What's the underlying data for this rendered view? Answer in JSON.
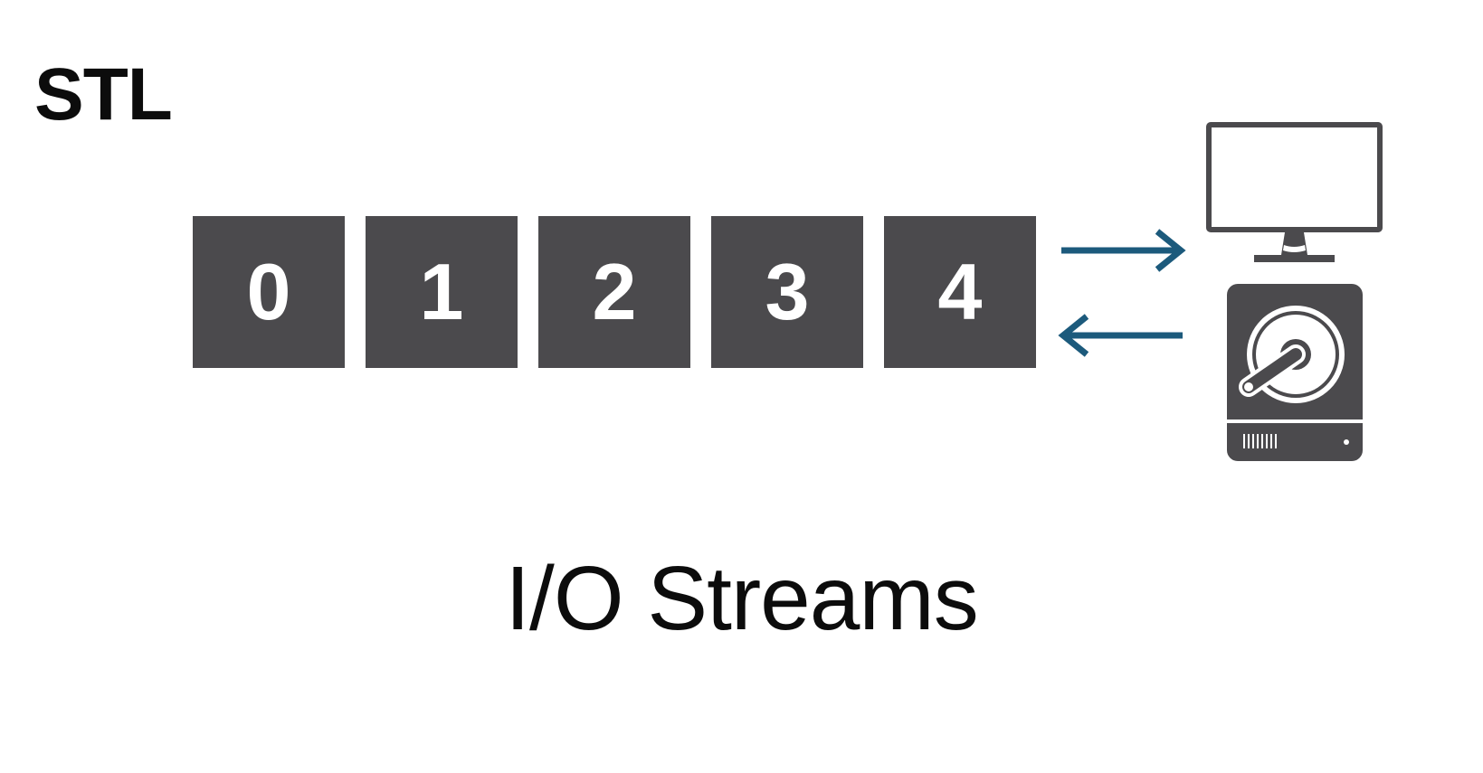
{
  "corner_label": "STL",
  "cells": [
    "0",
    "1",
    "2",
    "3",
    "4"
  ],
  "caption": "I/O Streams",
  "icons": {
    "output_arrow": "arrow-right-icon",
    "input_arrow": "arrow-left-icon",
    "monitor": "monitor-icon",
    "drive": "hard-drive-icon"
  },
  "colors": {
    "cell_fill": "#4b4a4d",
    "arrow": "#1c5a7c",
    "device": "#4b4a4d",
    "text": "#0c0c0c"
  }
}
